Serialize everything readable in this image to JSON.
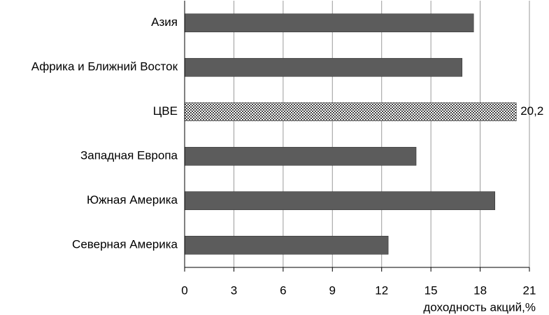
{
  "chart_data": {
    "type": "hbar",
    "categories": [
      "Азия",
      "Африка и Ближний Восток",
      "ЦВЕ",
      "Западная Европа",
      "Южная Америка",
      "Северная Америка"
    ],
    "values": [
      17.6,
      16.9,
      20.2,
      14.1,
      18.9,
      12.4
    ],
    "value_labels": [
      null,
      null,
      "20,2",
      null,
      null,
      null
    ],
    "colors": [
      "#5c5c5c",
      "#5c5c5c",
      "checkered",
      "#5c5c5c",
      "#5c5c5c",
      "#5c5c5c"
    ],
    "xlabel": "доходность акций,%",
    "xlim": [
      0,
      21
    ],
    "xticks": [
      0,
      3,
      6,
      9,
      12,
      15,
      18,
      21
    ],
    "grid": true
  }
}
